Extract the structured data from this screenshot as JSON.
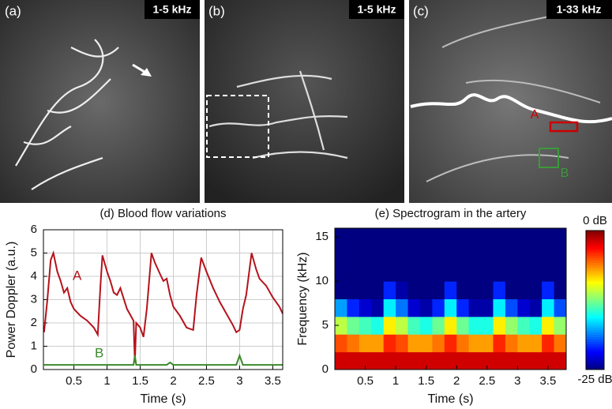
{
  "images": [
    {
      "label": "(a)",
      "tag": "1-5 kHz"
    },
    {
      "label": "(b)",
      "tag": "1-5 kHz"
    },
    {
      "label": "(c)",
      "tag": "1-33 kHz",
      "annotations": [
        "A",
        "B"
      ]
    }
  ],
  "chart_data": [
    {
      "type": "line",
      "title": "(d) Blood flow variations",
      "x_label": "Time (s)",
      "y_label": "Power Doppler (a.u.)",
      "x": [
        0.05,
        0.1,
        0.15,
        0.19,
        0.25,
        0.3,
        0.35,
        0.4,
        0.45,
        0.5,
        0.6,
        0.7,
        0.8,
        0.86,
        0.9,
        0.93,
        1.0,
        1.05,
        1.1,
        1.15,
        1.2,
        1.3,
        1.4,
        1.42,
        1.44,
        1.5,
        1.55,
        1.6,
        1.67,
        1.72,
        1.8,
        1.85,
        1.9,
        1.95,
        2.0,
        2.1,
        2.2,
        2.3,
        2.35,
        2.42,
        2.5,
        2.6,
        2.7,
        2.8,
        2.9,
        2.95,
        3.0,
        3.05,
        3.1,
        3.18,
        3.25,
        3.3,
        3.4,
        3.5,
        3.6,
        3.65
      ],
      "series": [
        {
          "name": "A",
          "color": "#b5121b",
          "values": [
            1.6,
            3.0,
            4.7,
            5.0,
            4.2,
            3.8,
            3.3,
            3.5,
            2.9,
            2.6,
            2.3,
            2.1,
            1.8,
            1.5,
            3.6,
            4.9,
            4.2,
            3.8,
            3.3,
            3.2,
            3.5,
            2.6,
            2.1,
            0.3,
            2.0,
            1.8,
            1.4,
            2.6,
            5.0,
            4.6,
            4.1,
            3.8,
            3.9,
            3.2,
            2.7,
            2.3,
            1.8,
            1.7,
            3.2,
            4.8,
            4.2,
            3.5,
            2.9,
            2.4,
            1.9,
            1.6,
            1.7,
            2.6,
            3.2,
            5.0,
            4.3,
            3.9,
            3.6,
            3.1,
            2.7,
            2.4
          ]
        },
        {
          "name": "B",
          "color": "#3a8a2a",
          "values": [
            0.2,
            0.2,
            0.2,
            0.2,
            0.2,
            0.2,
            0.2,
            0.2,
            0.2,
            0.2,
            0.2,
            0.2,
            0.2,
            0.2,
            0.2,
            0.2,
            0.2,
            0.2,
            0.2,
            0.2,
            0.2,
            0.2,
            0.2,
            0.6,
            0.2,
            0.2,
            0.2,
            0.2,
            0.2,
            0.2,
            0.2,
            0.2,
            0.2,
            0.3,
            0.2,
            0.2,
            0.2,
            0.2,
            0.2,
            0.2,
            0.2,
            0.2,
            0.2,
            0.2,
            0.2,
            0.2,
            0.6,
            0.2,
            0.2,
            0.2,
            0.2,
            0.2,
            0.2,
            0.2,
            0.2,
            0.2
          ]
        }
      ],
      "xlim": [
        0.04,
        3.65
      ],
      "xticks": [
        0.5,
        1,
        1.5,
        2,
        2.5,
        3,
        3.5
      ],
      "ylim": [
        0,
        6
      ],
      "yticks": [
        0,
        1,
        2,
        3,
        4,
        5,
        6
      ],
      "grid": true
    },
    {
      "type": "heatmap",
      "title": "(e) Spectrogram in the artery",
      "x_label": "Time (s)",
      "y_label": "Frequency (kHz)",
      "xbins": [
        0,
        0.2,
        0.4,
        0.6,
        0.8,
        1.0,
        1.2,
        1.4,
        1.6,
        1.8,
        2.0,
        2.2,
        2.4,
        2.6,
        2.8,
        3.0,
        3.2,
        3.4,
        3.6,
        3.8
      ],
      "ybins": [
        0,
        2,
        4,
        6,
        8,
        10,
        12,
        14,
        16
      ],
      "z": [
        [
          -2,
          -2,
          -2,
          -2,
          -2,
          -2,
          -2,
          -2,
          -2,
          -2,
          -2,
          -2,
          -2,
          -2,
          -2,
          -2,
          -2,
          -2,
          -2
        ],
        [
          -5,
          -6,
          -7,
          -7,
          -4,
          -5,
          -7,
          -7,
          -6,
          -4,
          -6,
          -7,
          -7,
          -4,
          -6,
          -7,
          -7,
          -4,
          -6
        ],
        [
          -11,
          -13,
          -14,
          -15,
          -9,
          -11,
          -14,
          -15,
          -13,
          -9,
          -13,
          -15,
          -15,
          -9,
          -12,
          -14,
          -15,
          -9,
          -12
        ],
        [
          -18,
          -21,
          -23,
          -24,
          -16,
          -19,
          -23,
          -24,
          -21,
          -16,
          -21,
          -24,
          -24,
          -16,
          -20,
          -23,
          -24,
          -16,
          -20
        ],
        [
          -25,
          -25,
          -25,
          -25,
          -21,
          -24,
          -25,
          -25,
          -25,
          -21,
          -25,
          -25,
          -25,
          -21,
          -25,
          -25,
          -25,
          -21,
          -25
        ],
        [
          -25,
          -25,
          -25,
          -25,
          -25,
          -25,
          -25,
          -25,
          -25,
          -25,
          -25,
          -25,
          -25,
          -25,
          -25,
          -25,
          -25,
          -25,
          -25
        ],
        [
          -25,
          -25,
          -25,
          -25,
          -25,
          -25,
          -25,
          -25,
          -25,
          -25,
          -25,
          -25,
          -25,
          -25,
          -25,
          -25,
          -25,
          -25,
          -25
        ],
        [
          -25,
          -25,
          -25,
          -25,
          -25,
          -25,
          -25,
          -25,
          -25,
          -25,
          -25,
          -25,
          -25,
          -25,
          -25,
          -25,
          -25,
          -25,
          -25
        ]
      ],
      "xlim": [
        0,
        3.8
      ],
      "xticks": [
        0.5,
        1,
        1.5,
        2,
        2.5,
        3,
        3.5
      ],
      "ylim": [
        0,
        16
      ],
      "yticks": [
        0,
        5,
        10,
        15
      ],
      "zlim": [
        -25,
        0
      ],
      "zticks": [
        {
          "value": 0,
          "label": "0 dB"
        },
        {
          "value": -25,
          "label": "-25 dB"
        }
      ],
      "colormap": "jet"
    }
  ]
}
